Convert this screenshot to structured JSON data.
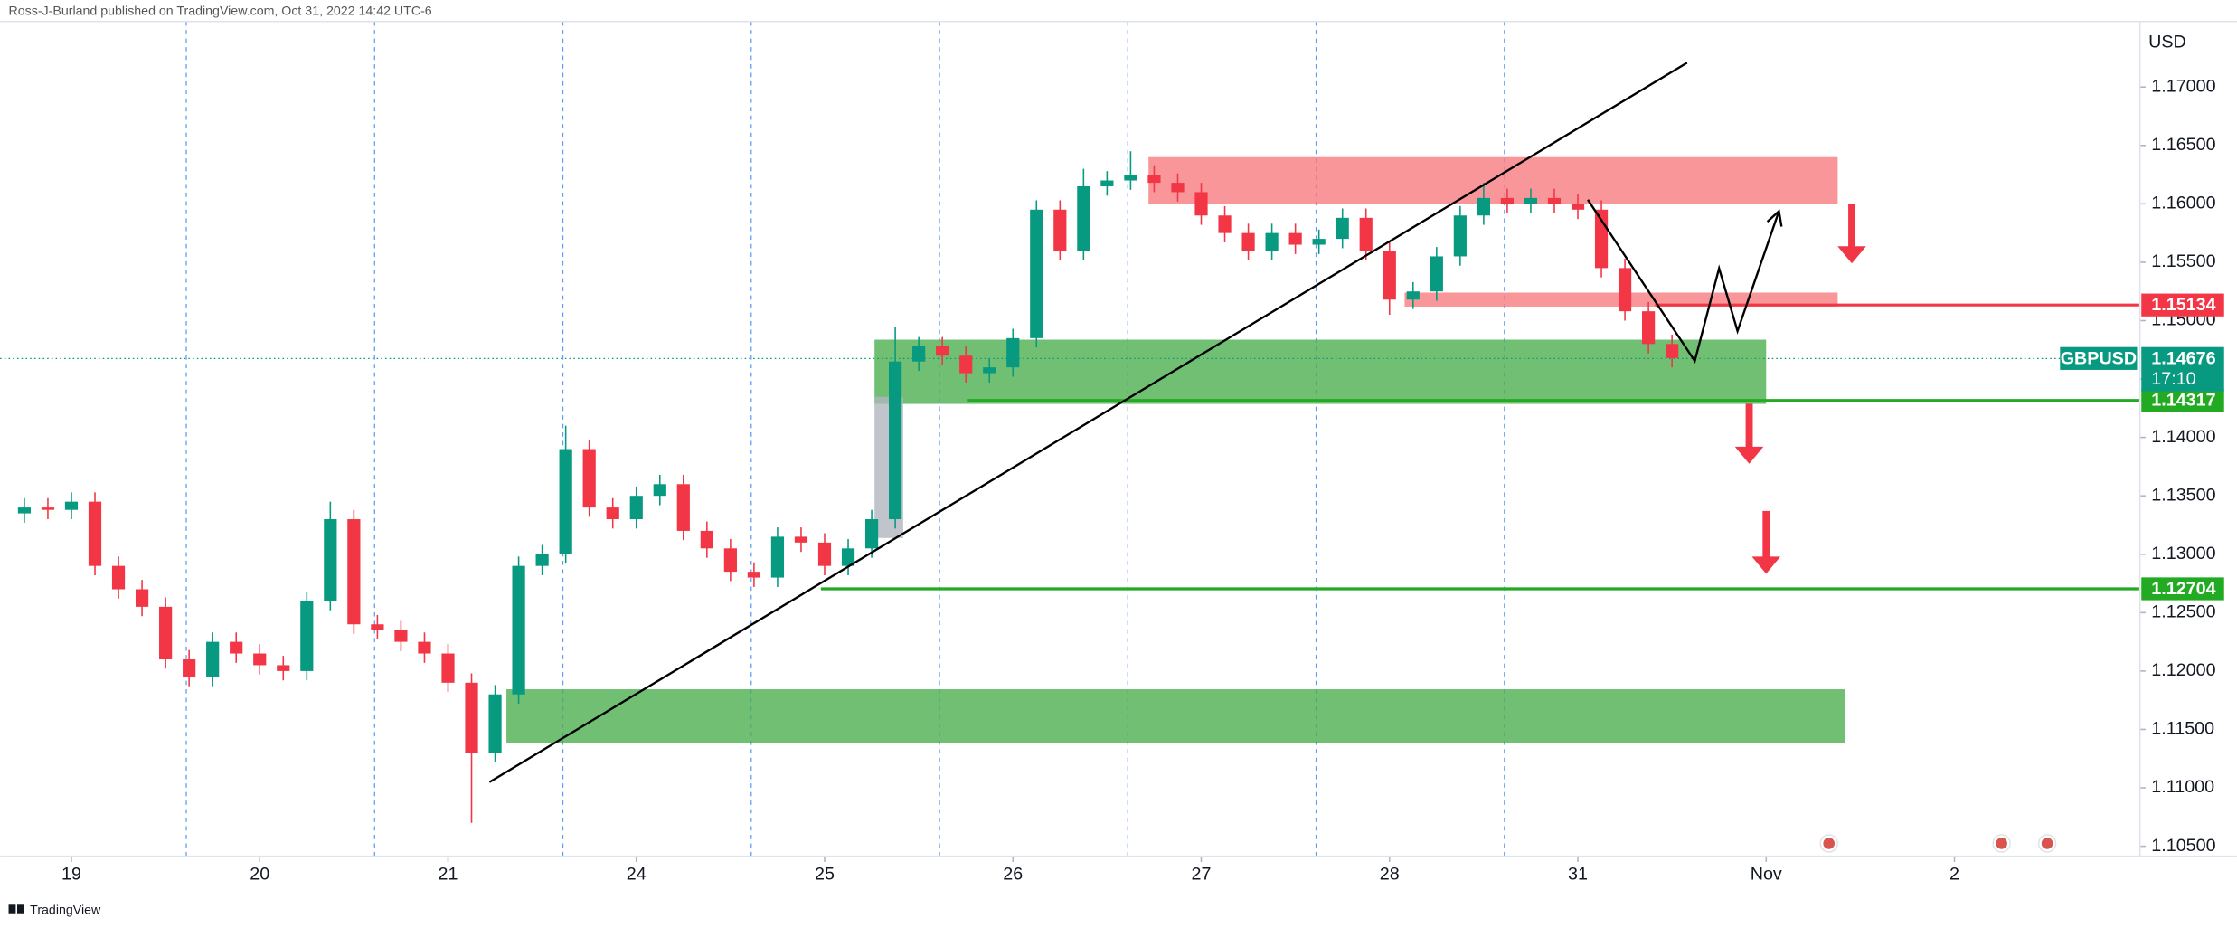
{
  "chart_data": {
    "type": "candlestick",
    "title": "Ross-J-Burland published on TradingView.com, Oct 31, 2022 14:42 UTC-6",
    "y_axis_label": "USD",
    "symbol": "GBPUSD",
    "last_price": 1.14676,
    "countdown": "17:10",
    "brand": "TradingView",
    "up_color": "#089981",
    "down_color": "#f23645",
    "x": [
      -0.25,
      -0.125,
      0,
      0.125,
      0.25,
      0.375,
      0.5,
      0.625,
      0.75,
      0.875,
      1,
      1.125,
      1.25,
      1.375,
      1.5,
      1.625,
      1.75,
      1.875,
      2,
      2.125,
      2.25,
      2.375,
      2.5,
      2.625,
      2.75,
      2.875,
      3,
      3.125,
      3.25,
      3.375,
      3.5,
      3.625,
      3.75,
      3.875,
      4,
      4.125,
      4.25,
      4.375,
      4.5,
      4.625,
      4.75,
      4.875,
      5,
      5.125,
      5.25,
      5.375,
      5.5,
      5.625,
      5.75,
      5.875,
      6,
      6.125,
      6.25,
      6.375,
      6.5,
      6.625,
      6.75,
      6.875,
      7,
      7.125,
      7.25,
      7.375,
      7.5,
      7.625,
      7.75,
      7.875,
      8,
      8.125,
      8.25,
      8.375,
      8.5
    ],
    "open": [
      1.1335,
      1.134,
      1.1338,
      1.1345,
      1.129,
      1.127,
      1.1255,
      1.121,
      1.1195,
      1.1225,
      1.1215,
      1.1205,
      1.12,
      1.126,
      1.133,
      1.124,
      1.1235,
      1.1225,
      1.1215,
      1.119,
      1.113,
      1.118,
      1.129,
      1.13,
      1.139,
      1.134,
      1.133,
      1.135,
      1.136,
      1.132,
      1.1305,
      1.1285,
      1.128,
      1.1315,
      1.131,
      1.129,
      1.1305,
      1.133,
      1.1465,
      1.1478,
      1.147,
      1.1455,
      1.146,
      1.1485,
      1.1595,
      1.156,
      1.1615,
      1.162,
      1.1625,
      1.1618,
      1.161,
      1.159,
      1.1575,
      1.156,
      1.1575,
      1.1565,
      1.157,
      1.1588,
      1.156,
      1.1518,
      1.1525,
      1.1555,
      1.159,
      1.1605,
      1.16,
      1.1605,
      1.16,
      1.1595,
      1.1545,
      1.1508,
      1.148
    ],
    "high": [
      1.1348,
      1.1348,
      1.1353,
      1.1353,
      1.1298,
      1.1278,
      1.1263,
      1.1218,
      1.1233,
      1.1233,
      1.1223,
      1.1213,
      1.1268,
      1.1345,
      1.1338,
      1.1248,
      1.1243,
      1.1233,
      1.1223,
      1.1198,
      1.1188,
      1.1298,
      1.1308,
      1.141,
      1.1398,
      1.1348,
      1.1358,
      1.1368,
      1.1368,
      1.1328,
      1.1313,
      1.1293,
      1.1323,
      1.1323,
      1.1318,
      1.1313,
      1.1338,
      1.1495,
      1.1486,
      1.1486,
      1.1478,
      1.1468,
      1.1493,
      1.1603,
      1.1603,
      1.163,
      1.1628,
      1.1645,
      1.1633,
      1.1626,
      1.1618,
      1.1598,
      1.1583,
      1.1583,
      1.1583,
      1.1578,
      1.1596,
      1.1596,
      1.1568,
      1.1533,
      1.1563,
      1.1598,
      1.1618,
      1.1613,
      1.1613,
      1.1613,
      1.1608,
      1.1603,
      1.1553,
      1.1516,
      1.1488
    ],
    "low": [
      1.1327,
      1.133,
      1.133,
      1.1282,
      1.1262,
      1.1247,
      1.1202,
      1.1187,
      1.1187,
      1.1207,
      1.1197,
      1.1192,
      1.1192,
      1.1252,
      1.1232,
      1.1227,
      1.1217,
      1.1207,
      1.1182,
      1.107,
      1.1122,
      1.1172,
      1.1282,
      1.1292,
      1.1332,
      1.1322,
      1.1322,
      1.1342,
      1.1312,
      1.1297,
      1.1277,
      1.1272,
      1.1272,
      1.1302,
      1.1282,
      1.1282,
      1.1297,
      1.1322,
      1.1457,
      1.1462,
      1.1447,
      1.1447,
      1.1452,
      1.1477,
      1.1552,
      1.1552,
      1.1607,
      1.1612,
      1.161,
      1.1602,
      1.1582,
      1.1567,
      1.1552,
      1.1552,
      1.1557,
      1.1557,
      1.1562,
      1.1552,
      1.1505,
      1.151,
      1.1517,
      1.1547,
      1.1582,
      1.1592,
      1.1592,
      1.1592,
      1.1587,
      1.1537,
      1.15,
      1.1472,
      1.146
    ],
    "close": [
      1.134,
      1.1338,
      1.1345,
      1.129,
      1.127,
      1.1255,
      1.121,
      1.1195,
      1.1225,
      1.1215,
      1.1205,
      1.12,
      1.126,
      1.133,
      1.124,
      1.1235,
      1.1225,
      1.1215,
      1.119,
      1.113,
      1.118,
      1.129,
      1.13,
      1.139,
      1.134,
      1.133,
      1.135,
      1.136,
      1.132,
      1.1305,
      1.1285,
      1.128,
      1.1315,
      1.131,
      1.129,
      1.1305,
      1.133,
      1.1465,
      1.1478,
      1.147,
      1.1455,
      1.146,
      1.1485,
      1.1595,
      1.156,
      1.1615,
      1.162,
      1.1625,
      1.1618,
      1.161,
      1.159,
      1.1575,
      1.156,
      1.1575,
      1.1565,
      1.157,
      1.1588,
      1.156,
      1.1518,
      1.1525,
      1.1555,
      1.159,
      1.1605,
      1.16,
      1.1605,
      1.16,
      1.1595,
      1.1545,
      1.1508,
      1.148,
      1.1468
    ],
    "xlim": [
      -0.379,
      10.985
    ],
    "ylim": [
      1.10439,
      1.17745
    ],
    "xticks": [
      {
        "value": 0,
        "label": "19"
      },
      {
        "value": 1,
        "label": "20"
      },
      {
        "value": 2,
        "label": "21"
      },
      {
        "value": 3,
        "label": "24"
      },
      {
        "value": 4,
        "label": "25"
      },
      {
        "value": 5,
        "label": "26"
      },
      {
        "value": 6,
        "label": "27"
      },
      {
        "value": 7,
        "label": "28"
      },
      {
        "value": 8,
        "label": "31"
      },
      {
        "value": 9,
        "label": "Nov"
      },
      {
        "value": 10,
        "label": "2"
      }
    ],
    "yticks": [
      {
        "value": 1.105,
        "label": "1.10500"
      },
      {
        "value": 1.11,
        "label": "1.11000"
      },
      {
        "value": 1.115,
        "label": "1.11500"
      },
      {
        "value": 1.12,
        "label": "1.12000"
      },
      {
        "value": 1.125,
        "label": "1.12500"
      },
      {
        "value": 1.13,
        "label": "1.13000"
      },
      {
        "value": 1.135,
        "label": "1.13500"
      },
      {
        "value": 1.14,
        "label": "1.14000"
      },
      {
        "value": 1.145,
        "label": "1.14500"
      },
      {
        "value": 1.15,
        "label": "1.15000"
      },
      {
        "value": 1.155,
        "label": "1.15500"
      },
      {
        "value": 1.16,
        "label": "1.16000"
      },
      {
        "value": 1.165,
        "label": "1.16500"
      },
      {
        "value": 1.17,
        "label": "1.17000"
      }
    ],
    "session_lines": [
      0.61,
      1.61,
      2.61,
      3.61,
      4.61,
      5.61,
      6.61,
      7.61
    ],
    "zones": [
      {
        "x": [
          5.72,
          9.38
        ],
        "y": [
          1.16,
          1.164
        ],
        "color": "#f77c80"
      },
      {
        "x": [
          7.08,
          9.38
        ],
        "y": [
          1.1512,
          1.1524
        ],
        "color": "#f77c80"
      },
      {
        "x": [
          4.265,
          9.0
        ],
        "y": [
          1.14287,
          1.14837
        ],
        "color": "#4caf50"
      },
      {
        "x": [
          2.31,
          9.42
        ],
        "y": [
          1.1138,
          1.11844
        ],
        "color": "#4caf50"
      },
      {
        "x": [
          4.265,
          4.417
        ],
        "y": [
          1.13139,
          1.14348
        ],
        "color": "#b2b5be"
      }
    ],
    "levels": [
      {
        "value": 1.15134,
        "start": 8.41,
        "color": "#f23645"
      },
      {
        "value": 1.14317,
        "start": 4.76,
        "color": "#22ab22"
      },
      {
        "value": 1.12704,
        "start": 3.98,
        "color": "#22ab22"
      }
    ],
    "trendline": {
      "x": [
        2.22,
        8.58
      ],
      "y": [
        1.11049,
        1.17208
      ],
      "color": "#000000"
    },
    "projection": {
      "x": [
        8.053,
        8.621,
        8.75,
        8.848,
        9.068
      ],
      "y": [
        1.16035,
        1.14654,
        1.15448,
        1.14911,
        1.15937
      ],
      "color": "#000000"
    },
    "arrows": [
      {
        "x": 9.455,
        "y": [
          1.16,
          1.1549
        ],
        "color": "#f23645"
      },
      {
        "x": 8.91,
        "y": [
          1.14287,
          1.13774
        ],
        "color": "#f23645"
      },
      {
        "x": 9.0,
        "y": [
          1.13371,
          1.12833
        ],
        "color": "#f23645"
      }
    ]
  }
}
